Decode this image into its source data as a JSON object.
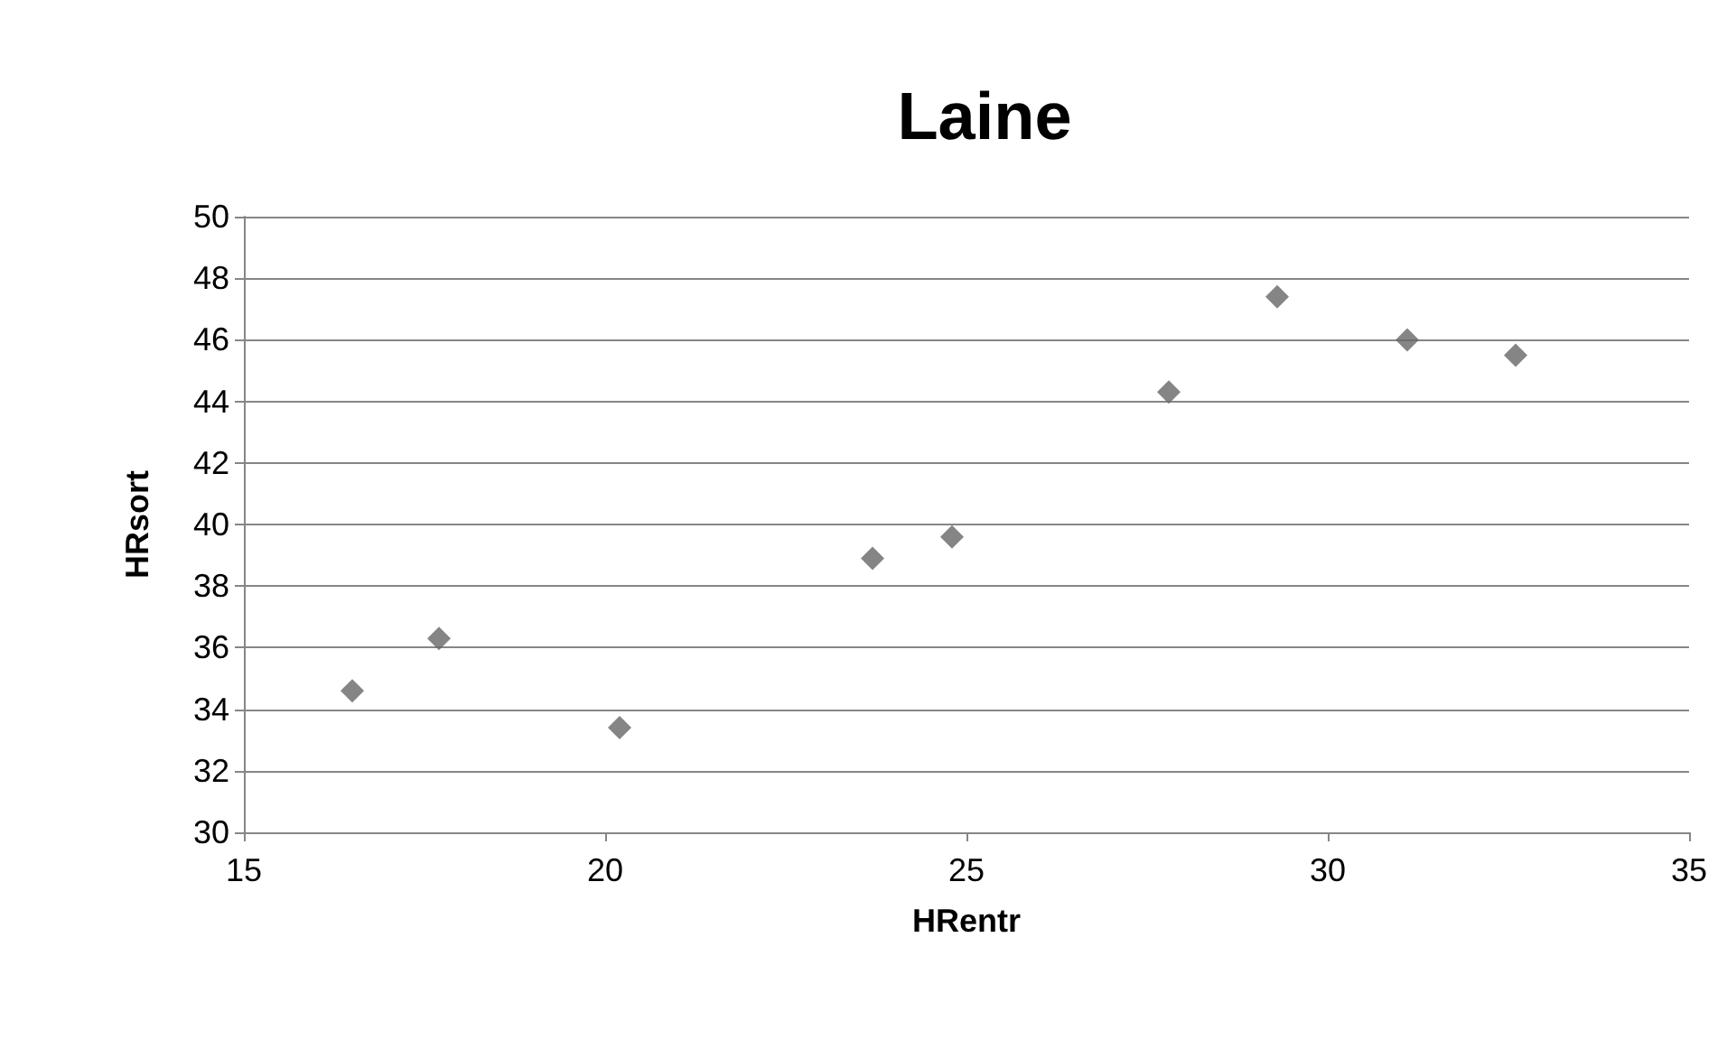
{
  "chart_data": {
    "type": "scatter",
    "title": "Laine",
    "xlabel": "HRentr",
    "ylabel": "HRsort",
    "x": [
      16.5,
      17.7,
      20.2,
      23.7,
      24.8,
      27.8,
      29.3,
      31.1,
      32.6
    ],
    "series": [
      {
        "color": "#666666",
        "values": [
          34.6,
          36.3,
          33.4,
          38.9,
          39.6,
          44.3,
          47.4,
          46.0,
          45.5
        ]
      }
    ],
    "xlim": [
      15,
      35
    ],
    "xticks": [
      15,
      20,
      25,
      30,
      35
    ],
    "ylim": [
      30,
      50
    ],
    "yticks": [
      30,
      32,
      34,
      36,
      38,
      40,
      42,
      44,
      46,
      48,
      50
    ],
    "grid": "y",
    "marker": "diamond"
  }
}
